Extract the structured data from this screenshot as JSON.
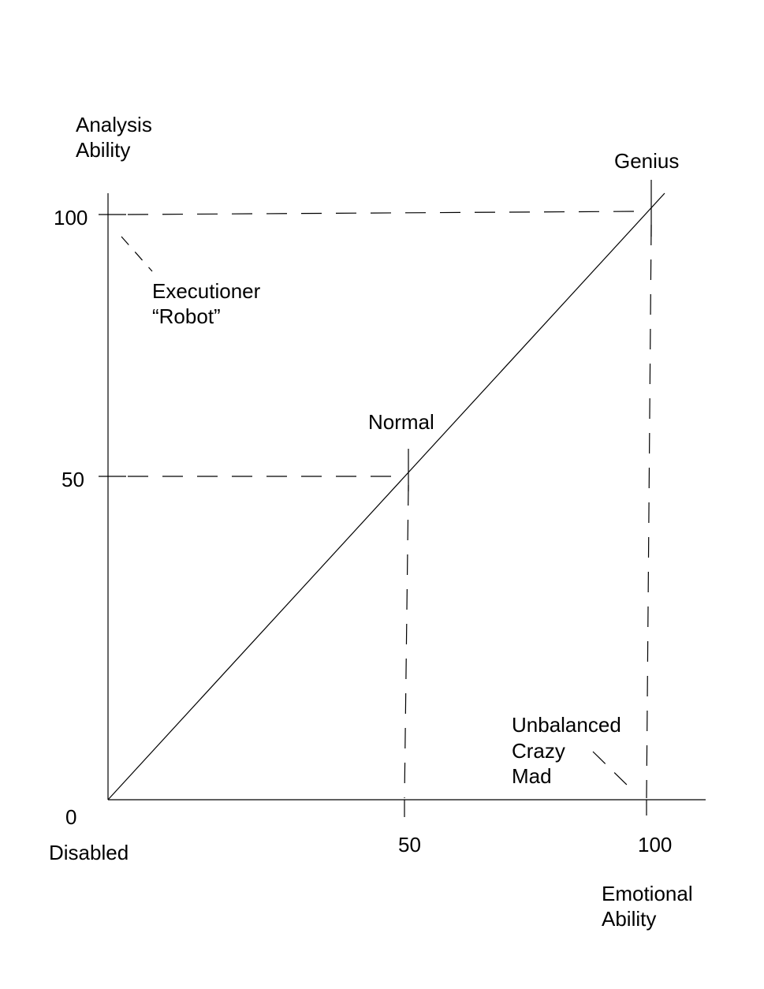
{
  "chart_data": {
    "type": "line",
    "xlabel": [
      "Emotional",
      "Ability"
    ],
    "ylabel": [
      "Analysis",
      "Ability"
    ],
    "xlim": [
      0,
      100
    ],
    "ylim": [
      0,
      100
    ],
    "x_ticks": [
      "50",
      "100"
    ],
    "y_ticks": [
      "100",
      "50"
    ],
    "origin_label": "0",
    "origin_caption": "Disabled",
    "grid": false,
    "series": [
      {
        "x": [
          0,
          100
        ],
        "y": [
          0,
          100
        ]
      }
    ],
    "points": [
      {
        "label": [
          "Normal"
        ],
        "x": 50,
        "y": 50
      },
      {
        "label": [
          "Genius"
        ],
        "x": 100,
        "y": 100
      }
    ],
    "annotations": [
      {
        "label": [
          "Executioner",
          "“Robot”"
        ],
        "x": 0,
        "y": 100
      },
      {
        "label": [
          "Unbalanced",
          "Crazy",
          "Mad"
        ],
        "x": 100,
        "y": 0
      }
    ]
  }
}
